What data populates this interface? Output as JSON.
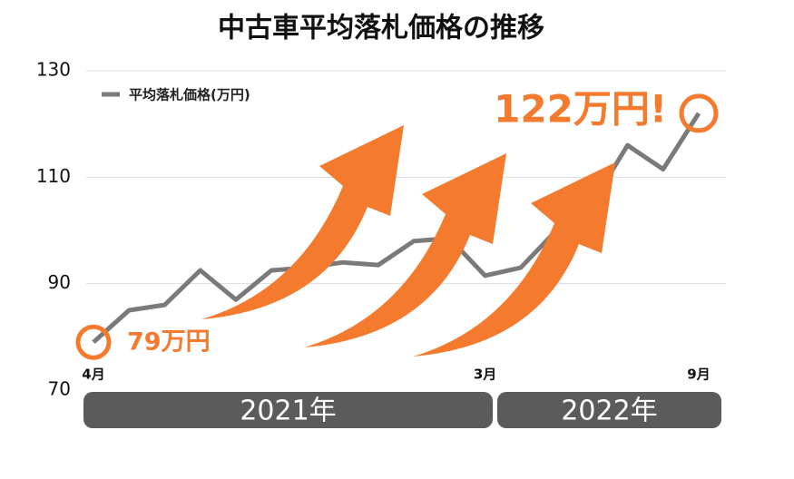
{
  "chart_data": {
    "type": "line",
    "title": "中古車平均落札価格の推移",
    "categories": [
      "4月",
      null,
      null,
      null,
      null,
      null,
      null,
      null,
      null,
      null,
      null,
      "3月",
      null,
      null,
      null,
      null,
      null,
      "9月"
    ],
    "series": [
      {
        "name": "平均落札価格(万円)",
        "color": "#7a7a7a",
        "values": [
          79,
          85,
          86,
          92.5,
          87,
          92.5,
          93,
          94,
          93.5,
          98,
          98.5,
          91.5,
          93,
          100,
          105,
          116,
          111.5,
          122
        ]
      }
    ],
    "ylim": [
      70,
      130
    ],
    "yticks": [
      70,
      90,
      110,
      130
    ],
    "grid": true,
    "annotations": [
      "79万円",
      "122万円!"
    ],
    "period_labels": [
      "2021年",
      "2022年"
    ],
    "accent_color": "#f47a2e"
  }
}
